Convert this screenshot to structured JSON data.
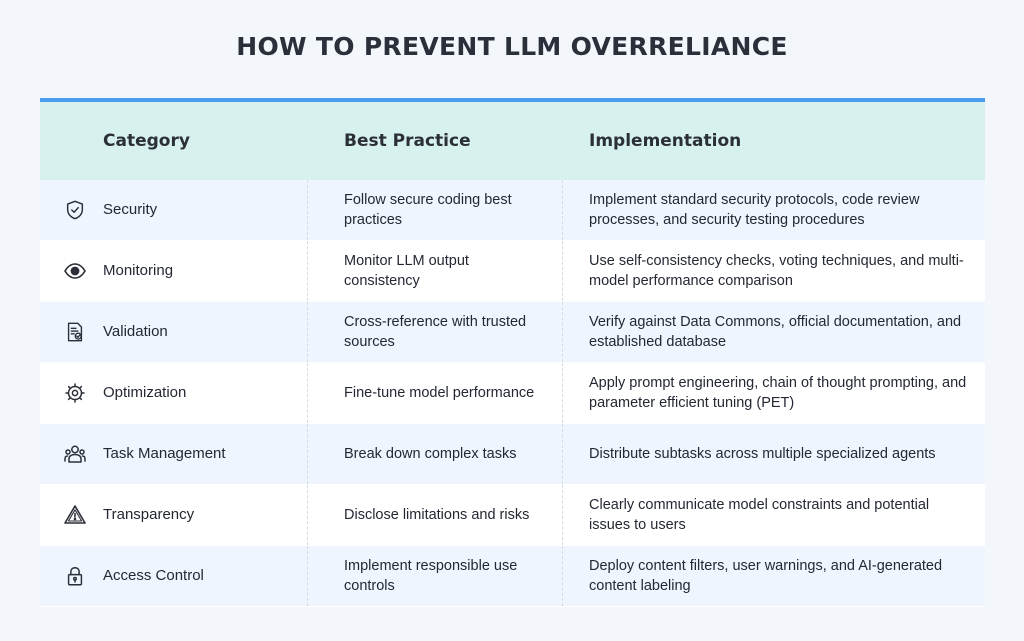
{
  "title": "HOW TO PREVENT LLM OVERRELIANCE",
  "colors": {
    "accent": "#4c9df0",
    "header_bg": "#d6f1ee",
    "row_alt": "#eef5fc"
  },
  "headers": {
    "category": "Category",
    "best_practice": "Best Practice",
    "implementation": "Implementation"
  },
  "rows": [
    {
      "icon": "shield-check-icon",
      "category": "Security",
      "best_practice": "Follow secure coding best practices",
      "implementation": "Implement standard security protocols, code review processes, and security testing procedures"
    },
    {
      "icon": "eye-icon",
      "category": "Monitoring",
      "best_practice": "Monitor LLM output consistency",
      "implementation": "Use self-consistency checks, voting techniques, and multi-model performance comparison"
    },
    {
      "icon": "document-check-icon",
      "category": "Validation",
      "best_practice": "Cross-reference with trusted sources",
      "implementation": "Verify against Data Commons, official documentation, and established database"
    },
    {
      "icon": "gear-cycle-icon",
      "category": "Optimization",
      "best_practice": "Fine-tune model performance",
      "implementation": "Apply prompt engineering, chain of thought prompting, and parameter efficient tuning (PET)"
    },
    {
      "icon": "team-icon",
      "category": "Task Management",
      "best_practice": "Break down complex tasks",
      "implementation": "Distribute subtasks across multiple specialized agents"
    },
    {
      "icon": "warning-icon",
      "category": "Transparency",
      "best_practice": "Disclose limitations and risks",
      "implementation": "Clearly communicate model constraints and potential issues to users"
    },
    {
      "icon": "lock-icon",
      "category": "Access Control",
      "best_practice": "Implement responsible use controls",
      "implementation": "Deploy content filters, user warnings, and AI-generated content labeling"
    }
  ]
}
